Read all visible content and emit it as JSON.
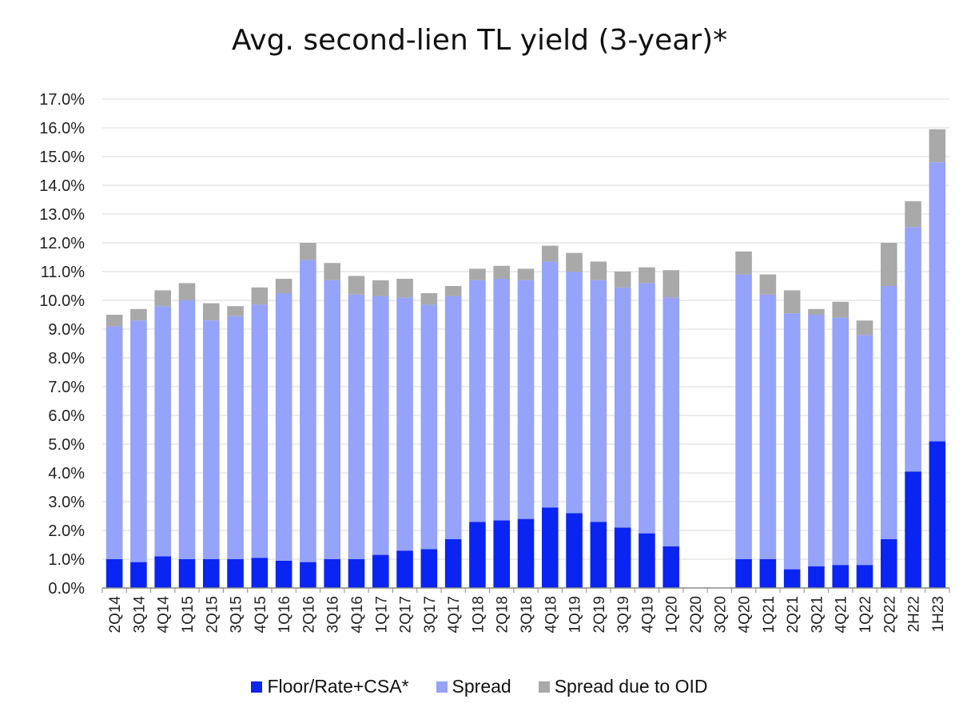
{
  "chart_data": {
    "type": "bar",
    "stacked": true,
    "title": "Avg. second-lien TL yield (3-year)*",
    "xlabel": "",
    "ylabel": "",
    "ylim": [
      0,
      17
    ],
    "ytick_step": 1,
    "ytick_labels": [
      "0.0%",
      "1.0%",
      "2.0%",
      "3.0%",
      "4.0%",
      "5.0%",
      "6.0%",
      "7.0%",
      "8.0%",
      "9.0%",
      "10.0%",
      "11.0%",
      "12.0%",
      "13.0%",
      "14.0%",
      "15.0%",
      "16.0%",
      "17.0%"
    ],
    "grid": true,
    "legend_position": "bottom",
    "categories": [
      "2Q14",
      "3Q14",
      "4Q14",
      "1Q15",
      "2Q15",
      "3Q15",
      "4Q15",
      "1Q16",
      "2Q16",
      "3Q16",
      "4Q16",
      "1Q17",
      "2Q17",
      "3Q17",
      "4Q17",
      "1Q18",
      "2Q18",
      "3Q18",
      "4Q18",
      "1Q19",
      "2Q19",
      "3Q19",
      "4Q19",
      "1Q20",
      "2Q20",
      "3Q20",
      "4Q20",
      "1Q21",
      "2Q21",
      "3Q21",
      "4Q21",
      "1Q22",
      "2Q22",
      "2H22",
      "1H23"
    ],
    "series": [
      {
        "name": "Floor/Rate+CSA*",
        "color": "#0a24f2",
        "values": [
          1.0,
          0.9,
          1.1,
          1.0,
          1.0,
          1.0,
          1.05,
          0.95,
          0.9,
          1.0,
          1.0,
          1.15,
          1.3,
          1.35,
          1.7,
          2.3,
          2.35,
          2.4,
          2.8,
          2.6,
          2.3,
          2.1,
          1.9,
          1.45,
          null,
          null,
          1.0,
          1.0,
          0.65,
          0.75,
          0.8,
          0.8,
          1.7,
          4.05,
          5.1
        ]
      },
      {
        "name": "Spread",
        "color": "#95a3fa",
        "values": [
          8.1,
          8.4,
          8.7,
          9.0,
          8.3,
          8.45,
          8.8,
          9.3,
          10.5,
          9.7,
          9.2,
          9.0,
          8.8,
          8.5,
          8.45,
          8.4,
          8.4,
          8.3,
          8.55,
          8.4,
          8.4,
          8.35,
          8.7,
          8.65,
          null,
          null,
          9.9,
          9.2,
          8.9,
          8.75,
          8.6,
          8.0,
          8.8,
          8.5,
          9.7
        ]
      },
      {
        "name": "Spread due to OID",
        "color": "#a9a9a9",
        "values": [
          0.4,
          0.4,
          0.55,
          0.6,
          0.6,
          0.35,
          0.6,
          0.5,
          0.6,
          0.6,
          0.65,
          0.55,
          0.65,
          0.4,
          0.35,
          0.4,
          0.45,
          0.4,
          0.55,
          0.65,
          0.65,
          0.55,
          0.55,
          0.95,
          null,
          null,
          0.8,
          0.7,
          0.8,
          0.2,
          0.55,
          0.5,
          1.5,
          0.9,
          1.15
        ]
      }
    ]
  }
}
